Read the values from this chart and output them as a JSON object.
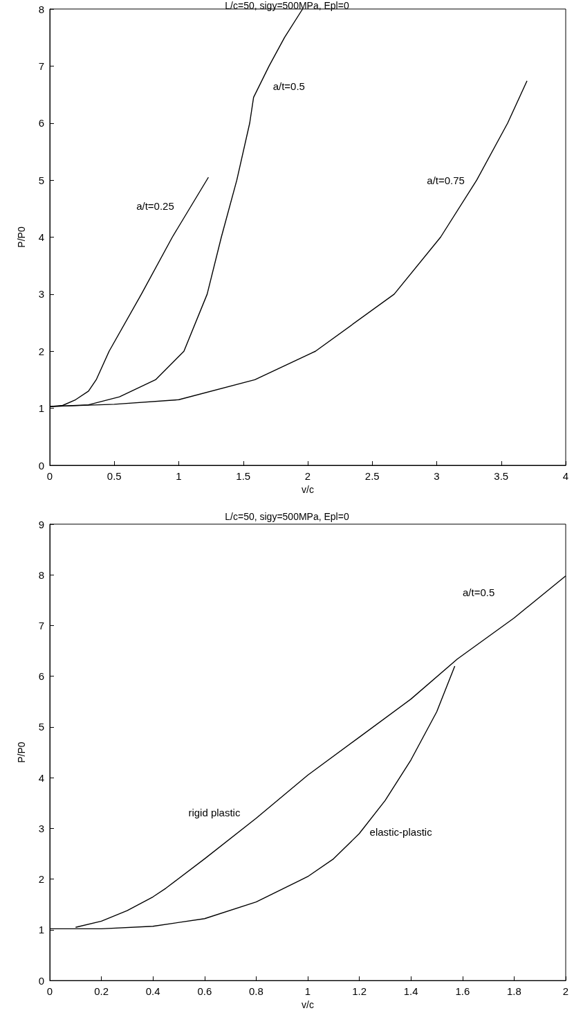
{
  "chart_data": [
    {
      "type": "line",
      "title": "L/c=50, sigy=500MPa, Epl=0",
      "xlabel": "v/c",
      "ylabel": "P/P0",
      "xlim": [
        0,
        4
      ],
      "xticks": [
        0,
        0.5,
        1,
        1.5,
        2,
        2.5,
        3,
        3.5,
        4
      ],
      "ylim": [
        0,
        8
      ],
      "yticks": [
        0,
        1,
        2,
        3,
        4,
        5,
        6,
        7,
        8
      ],
      "grid": false,
      "marker": "none",
      "line_style": "solid",
      "series": [
        {
          "name": "a/t=0.25",
          "color": "#000000",
          "x": [
            0,
            0.1,
            0.2,
            0.3,
            0.36,
            0.46,
            0.71,
            0.95,
            1.23
          ],
          "values": [
            1.03,
            1.05,
            1.15,
            1.3,
            1.5,
            2,
            3,
            4,
            5.05
          ]
        },
        {
          "name": "a/t=0.5",
          "color": "#000000",
          "x": [
            0,
            0.3,
            0.54,
            0.82,
            1.04,
            1.22,
            1.33,
            1.45,
            1.55,
            1.58,
            1.7,
            1.82,
            1.96
          ],
          "values": [
            1.03,
            1.06,
            1.2,
            1.5,
            2,
            3,
            4,
            5,
            6,
            6.45,
            7,
            7.5,
            8
          ]
        },
        {
          "name": "a/t=0.75",
          "color": "#000000",
          "x": [
            0,
            0.5,
            1,
            1.59,
            2.06,
            2.67,
            3.03,
            3.31,
            3.55,
            3.7
          ],
          "values": [
            1.03,
            1.07,
            1.15,
            1.5,
            2,
            3,
            4,
            5,
            6,
            6.74
          ]
        }
      ],
      "legend": false
    },
    {
      "type": "line",
      "title": "L/c=50, sigy=500MPa, Epl=0",
      "xlabel": "v/c",
      "ylabel": "P/P0",
      "xlim": [
        0,
        2
      ],
      "xticks": [
        0,
        0.2,
        0.4,
        0.6,
        0.8,
        1,
        1.2,
        1.4,
        1.6,
        1.8,
        2
      ],
      "ylim": [
        0,
        9
      ],
      "yticks": [
        0,
        1,
        2,
        3,
        4,
        5,
        6,
        7,
        8,
        9
      ],
      "grid": false,
      "marker": "none",
      "line_style": "solid",
      "series": [
        {
          "name": "rigid plastic",
          "color": "#000000",
          "x": [
            0.1,
            0.2,
            0.3,
            0.4,
            0.45,
            0.6,
            0.8,
            1,
            1.2,
            1.4,
            1.58,
            1.8,
            2
          ],
          "values": [
            1.05,
            1.17,
            1.38,
            1.65,
            1.82,
            2.4,
            3.2,
            4.05,
            4.8,
            5.55,
            6.34,
            7.15,
            7.98
          ]
        },
        {
          "name": "elastic-plastic",
          "color": "#000000",
          "x": [
            0,
            0.2,
            0.4,
            0.6,
            0.8,
            1,
            1.1,
            1.2,
            1.3,
            1.4,
            1.5,
            1.57
          ],
          "values": [
            1.02,
            1.02,
            1.07,
            1.22,
            1.55,
            2.05,
            2.4,
            2.9,
            3.55,
            4.35,
            5.3,
            6.2
          ]
        }
      ],
      "legend": false,
      "annotations": [
        "a/t=0.5"
      ]
    }
  ]
}
